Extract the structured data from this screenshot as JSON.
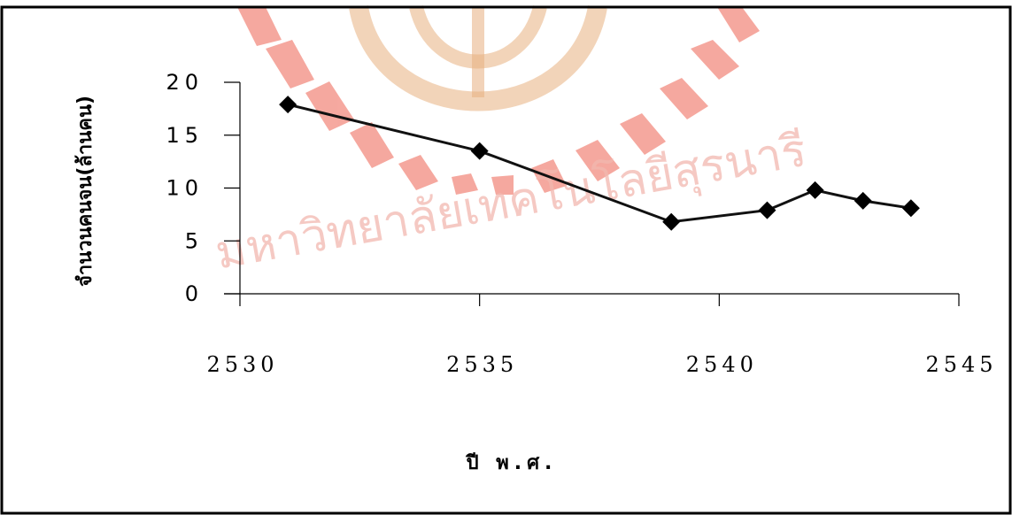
{
  "chart_data": {
    "type": "line",
    "title": "",
    "xlabel": "ปี พ.ศ.",
    "ylabel": "จำนวนคนจน(ล้านคน)",
    "x": [
      2531,
      2535,
      2539,
      2541,
      2542,
      2543,
      2544
    ],
    "series": [
      {
        "values": [
          17.9,
          13.5,
          6.8,
          7.9,
          9.8,
          8.8,
          8.1
        ]
      }
    ],
    "xlim": [
      2530,
      2545
    ],
    "ylim": [
      0,
      20
    ],
    "xticks": [
      "2530",
      "2535",
      "2540",
      "2545"
    ],
    "yticks": [
      "20",
      "15",
      "10",
      "5",
      "0"
    ],
    "grid": false,
    "legend": "none",
    "line_color": "#111111",
    "marker": "diamond"
  },
  "watermark": {
    "text": "มหาวิทยาลัยเทคโนโลยีสุรนารี",
    "color": "#f2b8b0",
    "emblem_color": "#e8a070"
  }
}
